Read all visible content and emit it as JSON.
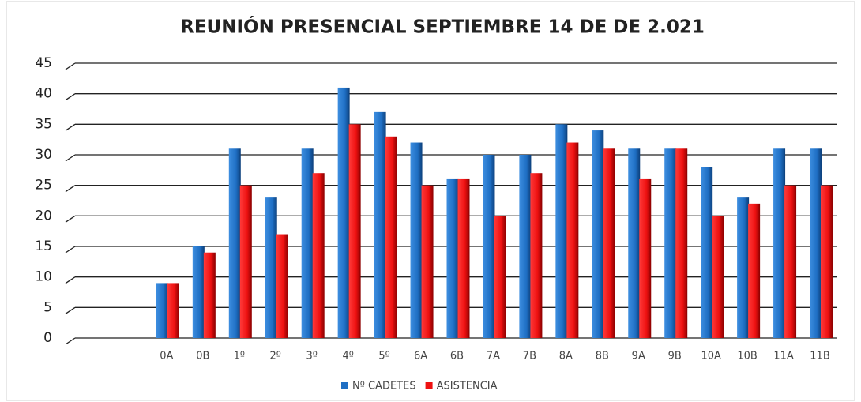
{
  "chart_data": {
    "type": "bar",
    "title": "REUNIÓN PRESENCIAL SEPTIEMBRE 14 DE DE 2.021",
    "categories": [
      null,
      null,
      "0A",
      "0B",
      "1º",
      "2º",
      "3º",
      "4º",
      "5º",
      "6A",
      "6B",
      "7A",
      "7B",
      "8A",
      "8B",
      "9A",
      "9B",
      "10A",
      "10B",
      "11A",
      "11B"
    ],
    "series": [
      {
        "name": "Nº CADETES",
        "color": "#1f6fc4",
        "values": [
          null,
          null,
          9,
          15,
          31,
          23,
          31,
          41,
          37,
          32,
          26,
          30,
          30,
          35,
          34,
          31,
          31,
          28,
          23,
          31,
          31
        ]
      },
      {
        "name": "ASISTENCIA",
        "color": "#ee1111",
        "values": [
          null,
          null,
          9,
          14,
          25,
          17,
          27,
          35,
          33,
          25,
          26,
          20,
          27,
          32,
          31,
          26,
          31,
          20,
          22,
          25,
          25
        ]
      }
    ],
    "ylim": [
      0,
      45
    ],
    "yticks": [
      0,
      5,
      10,
      15,
      20,
      25,
      30,
      35,
      40,
      45
    ],
    "grid": true,
    "legend": "bottom"
  }
}
